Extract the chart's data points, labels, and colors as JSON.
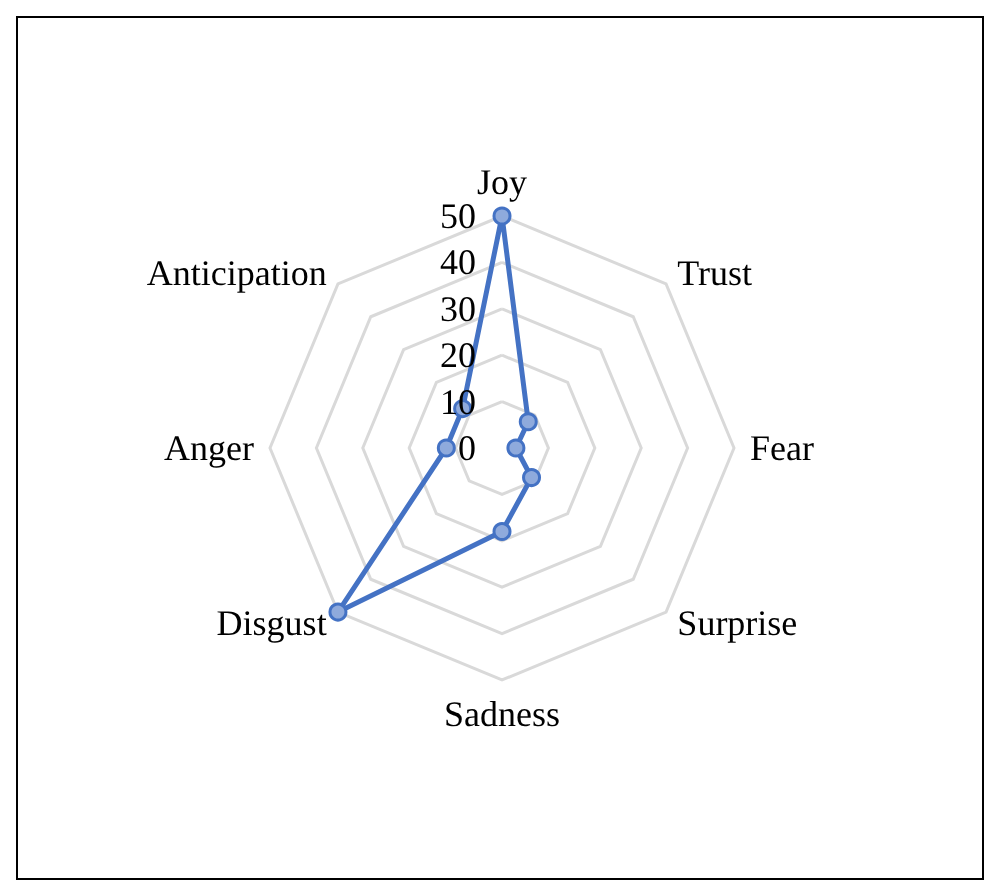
{
  "chart_data": {
    "type": "radar",
    "categories": [
      "Joy",
      "Trust",
      "Fear",
      "Surprise",
      "Sadness",
      "Disgust",
      "Anger",
      "Anticipation"
    ],
    "series": [
      {
        "color": "#4472c4",
        "values": [
          50,
          8,
          3,
          9,
          18,
          50,
          12,
          12
        ]
      }
    ],
    "ylim": [
      0,
      50
    ],
    "yticks": [
      0,
      10,
      20,
      30,
      40,
      50
    ],
    "marker": "circle",
    "grid": true
  }
}
